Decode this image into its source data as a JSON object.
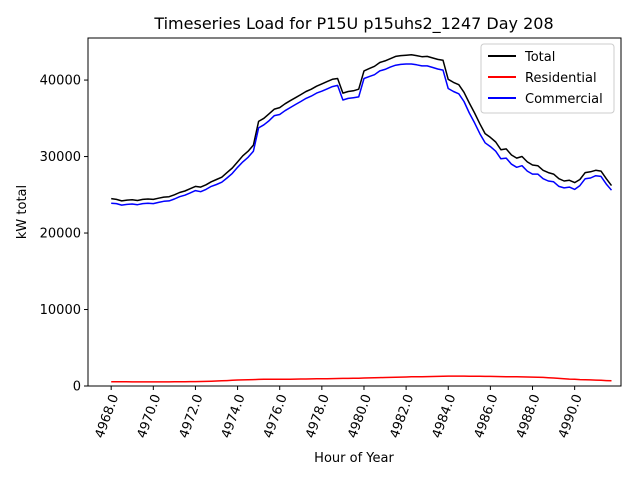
{
  "chart_data": {
    "type": "line",
    "title": "Timeseries Load for P15U p15uhs2_1247  Day 208",
    "xlabel": "Hour of Year",
    "ylabel": "kW total",
    "xlim": [
      4966.9,
      4992.2
    ],
    "ylim": [
      0,
      45500
    ],
    "xticks": [
      4968,
      4970,
      4972,
      4974,
      4976,
      4978,
      4980,
      4982,
      4984,
      4986,
      4988,
      4990
    ],
    "xtick_labels": [
      "4968.0",
      "4970.0",
      "4972.0",
      "4974.0",
      "4976.0",
      "4978.0",
      "4980.0",
      "4982.0",
      "4984.0",
      "4986.0",
      "4988.0",
      "4990.0"
    ],
    "yticks": [
      0,
      10000,
      20000,
      30000,
      40000
    ],
    "ytick_labels": [
      "0",
      "10000",
      "20000",
      "30000",
      "40000"
    ],
    "legend_position": "top-right",
    "x": [
      4968.0,
      4968.25,
      4968.5,
      4968.75,
      4969.0,
      4969.25,
      4969.5,
      4969.75,
      4970.0,
      4970.25,
      4970.5,
      4970.75,
      4971.0,
      4971.25,
      4971.5,
      4971.75,
      4972.0,
      4972.25,
      4972.5,
      4972.75,
      4973.0,
      4973.25,
      4973.5,
      4973.75,
      4974.0,
      4974.25,
      4974.5,
      4974.75,
      4975.0,
      4975.25,
      4975.5,
      4975.75,
      4976.0,
      4976.25,
      4976.5,
      4976.75,
      4977.0,
      4977.25,
      4977.5,
      4977.75,
      4978.0,
      4978.25,
      4978.5,
      4978.75,
      4979.0,
      4979.25,
      4979.5,
      4979.75,
      4980.0,
      4980.25,
      4980.5,
      4980.75,
      4981.0,
      4981.25,
      4981.5,
      4981.75,
      4982.0,
      4982.25,
      4982.5,
      4982.75,
      4983.0,
      4983.25,
      4983.5,
      4983.75,
      4984.0,
      4984.25,
      4984.5,
      4984.75,
      4985.0,
      4985.25,
      4985.5,
      4985.75,
      4986.0,
      4986.25,
      4986.5,
      4986.75,
      4987.0,
      4987.25,
      4987.5,
      4987.75,
      4988.0,
      4988.25,
      4988.5,
      4988.75,
      4989.0,
      4989.25,
      4989.5,
      4989.75,
      4990.0,
      4990.25,
      4990.5,
      4990.75,
      4991.0,
      4991.25,
      4991.5,
      4991.75
    ],
    "series": [
      {
        "name": "Total",
        "color": "#000000",
        "values": [
          24500,
          24400,
          24200,
          24300,
          24350,
          24250,
          24400,
          24450,
          24400,
          24550,
          24700,
          24750,
          25000,
          25300,
          25500,
          25800,
          26100,
          26000,
          26300,
          26700,
          27000,
          27300,
          27900,
          28500,
          29300,
          30100,
          30700,
          31500,
          34600,
          35000,
          35600,
          36200,
          36400,
          36900,
          37300,
          37700,
          38100,
          38500,
          38800,
          39200,
          39500,
          39800,
          40100,
          40200,
          38300,
          38500,
          38600,
          38800,
          41200,
          41500,
          41800,
          42300,
          42500,
          42800,
          43100,
          43200,
          43250,
          43300,
          43200,
          43050,
          43100,
          42900,
          42700,
          42600,
          40100,
          39700,
          39400,
          38400,
          37000,
          35700,
          34300,
          33000,
          32500,
          31900,
          30900,
          31000,
          30200,
          29800,
          30000,
          29300,
          28900,
          28800,
          28200,
          27900,
          27700,
          27100,
          26800,
          26900,
          26600,
          27000,
          27900,
          28000,
          28200,
          28100,
          27100,
          26200
        ]
      },
      {
        "name": "Residential",
        "color": "#ff0000",
        "values": [
          560,
          555,
          550,
          545,
          540,
          538,
          535,
          533,
          530,
          530,
          535,
          540,
          545,
          550,
          560,
          570,
          580,
          590,
          600,
          630,
          650,
          680,
          710,
          740,
          780,
          800,
          820,
          840,
          860,
          870,
          875,
          880,
          885,
          890,
          895,
          900,
          910,
          920,
          930,
          940,
          950,
          960,
          970,
          980,
          990,
          1000,
          1010,
          1020,
          1040,
          1060,
          1080,
          1100,
          1110,
          1120,
          1140,
          1160,
          1180,
          1200,
          1210,
          1220,
          1230,
          1240,
          1260,
          1280,
          1300,
          1300,
          1295,
          1290,
          1285,
          1280,
          1270,
          1260,
          1250,
          1240,
          1230,
          1220,
          1210,
          1200,
          1190,
          1180,
          1170,
          1150,
          1120,
          1080,
          1040,
          1000,
          950,
          900,
          870,
          840,
          820,
          800,
          770,
          740,
          710,
          680
        ]
      },
      {
        "name": "Commercial",
        "color": "#0000ff",
        "values": [
          23900,
          23850,
          23650,
          23750,
          23800,
          23700,
          23850,
          23900,
          23850,
          24000,
          24150,
          24200,
          24450,
          24750,
          24950,
          25250,
          25550,
          25400,
          25700,
          26100,
          26350,
          26650,
          27200,
          27800,
          28600,
          29300,
          29900,
          30700,
          33750,
          34150,
          34700,
          35350,
          35500,
          36000,
          36400,
          36800,
          37200,
          37600,
          37900,
          38300,
          38550,
          38850,
          39150,
          39300,
          37400,
          37600,
          37700,
          37800,
          40200,
          40450,
          40700,
          41200,
          41400,
          41700,
          41950,
          42050,
          42100,
          42100,
          42000,
          41850,
          41850,
          41650,
          41450,
          41300,
          38900,
          38500,
          38200,
          37200,
          35700,
          34400,
          33000,
          31800,
          31300,
          30700,
          29700,
          29800,
          29000,
          28600,
          28800,
          28100,
          27700,
          27700,
          27100,
          26800,
          26700,
          26100,
          25900,
          26000,
          25700,
          26200,
          27100,
          27200,
          27500,
          27400,
          26400,
          25600
        ]
      }
    ]
  }
}
